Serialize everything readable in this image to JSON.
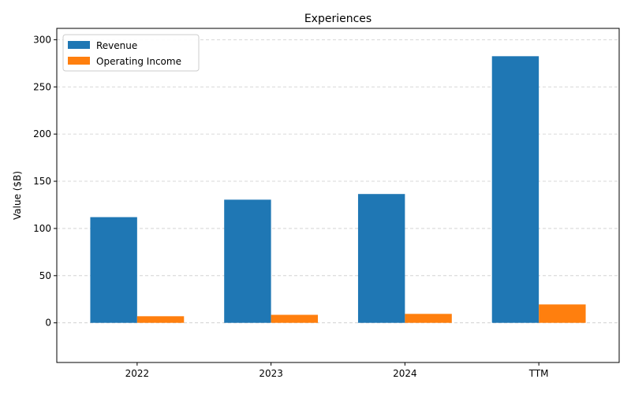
{
  "chart_data": {
    "type": "bar",
    "title": "Experiences",
    "xlabel": "",
    "ylabel": "Value ($B)",
    "categories": [
      "2022",
      "2023",
      "2024",
      "TTM"
    ],
    "series": [
      {
        "name": "Revenue",
        "values": [
          112,
          130.5,
          136.5,
          282.5
        ],
        "color": "#1f77b4"
      },
      {
        "name": "Operating Income",
        "values": [
          7,
          8.5,
          9.5,
          19.5
        ],
        "color": "#ff7f0e"
      }
    ],
    "ylim": [
      -42,
      312
    ],
    "yticks": [
      0,
      50,
      100,
      150,
      200,
      250,
      300
    ],
    "grid": "y-dashed",
    "legend": "top-left"
  }
}
